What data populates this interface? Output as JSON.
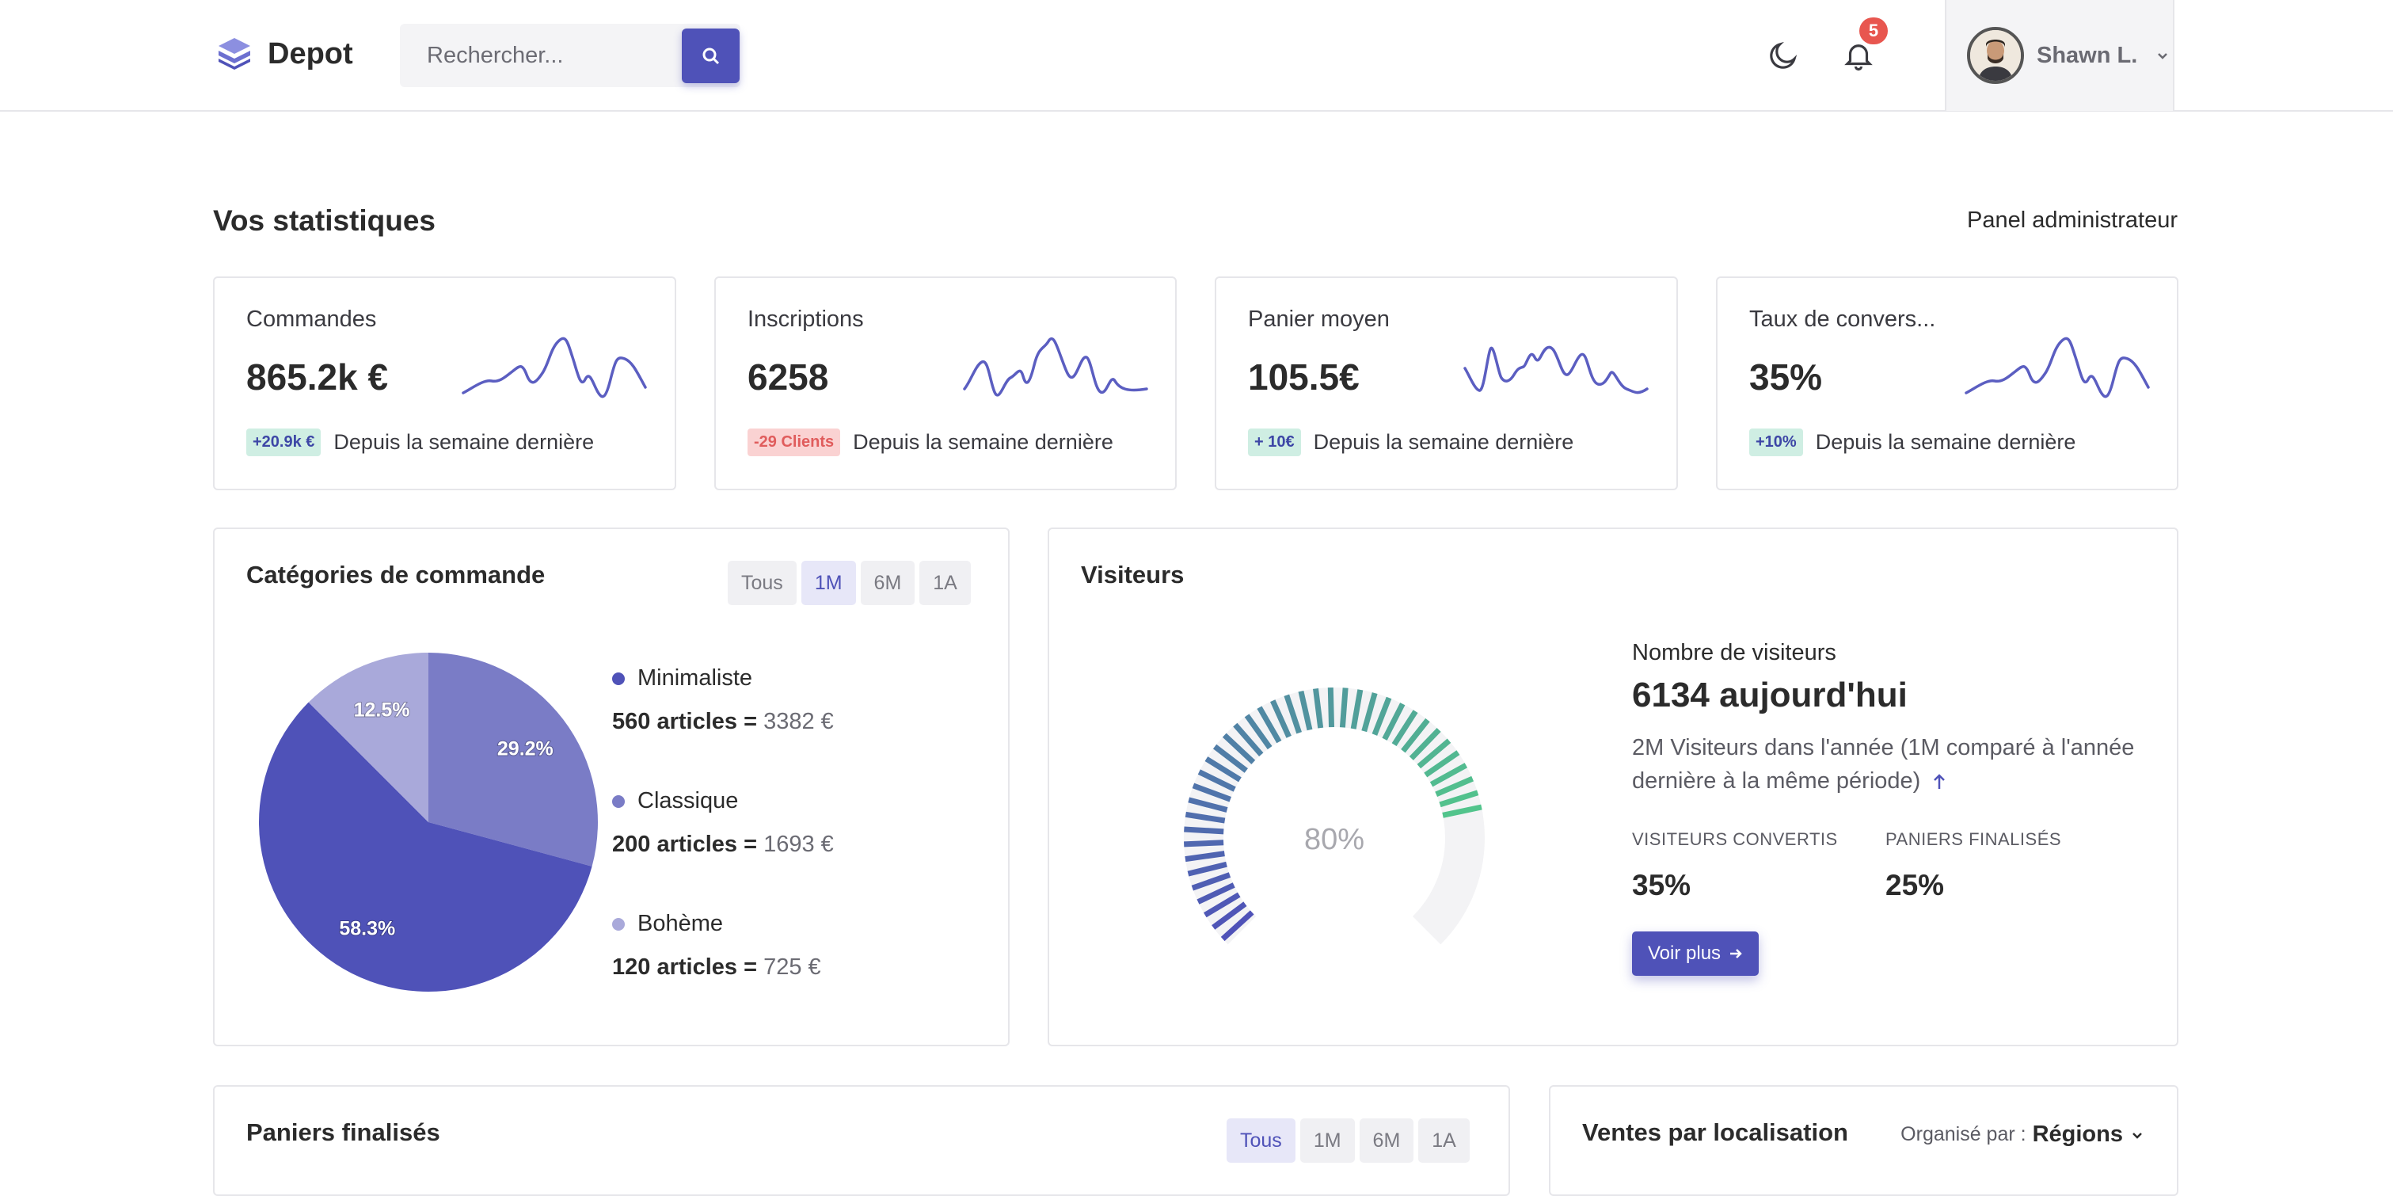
{
  "brand": {
    "name": "Depot",
    "accent": "#4f52b8"
  },
  "search": {
    "placeholder": "Rechercher..."
  },
  "notifications": {
    "count": "5"
  },
  "user": {
    "name": "Shawn L."
  },
  "page": {
    "title": "Vos statistiques",
    "admin_link": "Panel administrateur"
  },
  "stats": [
    {
      "label": "Commandes",
      "value": "865.2k €",
      "delta": "+20.9k €",
      "delta_kind": "green",
      "period": "Depuis la semaine dernière"
    },
    {
      "label": "Inscriptions",
      "value": "6258",
      "delta": "-29 Clients",
      "delta_kind": "red",
      "period": "Depuis la semaine dernière"
    },
    {
      "label": "Panier moyen",
      "value": "105.5€",
      "delta": "+ 10€",
      "delta_kind": "green",
      "period": "Depuis la semaine dernière"
    },
    {
      "label": "Taux de convers...",
      "value": "35%",
      "delta": "+10%",
      "delta_kind": "green",
      "period": "Depuis la semaine dernière"
    }
  ],
  "categories": {
    "title": "Catégories de commande",
    "filters": [
      "Tous",
      "1M",
      "6M",
      "1A"
    ],
    "active_filter": "1M",
    "items": [
      {
        "name": "Minimaliste",
        "count": "560 articles =",
        "amount": "3382 €",
        "color": "#4f52b8"
      },
      {
        "name": "Classique",
        "count": "200 articles =",
        "amount": "1693 €",
        "color": "#7a7cc6"
      },
      {
        "name": "Bohème",
        "count": "120 articles =",
        "amount": "725 €",
        "color": "#a9a9da"
      }
    ]
  },
  "chart_data": {
    "type": "pie",
    "categories": [
      "Minimaliste",
      "Classique",
      "Bohème"
    ],
    "values": [
      58.3,
      29.2,
      12.5
    ],
    "labels": [
      "58.3%",
      "29.2%",
      "12.5%"
    ]
  },
  "visitors": {
    "title": "Visiteurs",
    "gauge_value": 80,
    "gauge_label": "80%",
    "label": "Nombre de visiteurs",
    "today": "6134 aujourd'hui",
    "desc": "2M Visiteurs dans l'année (1M comparé à l'année dernière à la même période)",
    "stat1_label": "VISITEURS CONVERTIS",
    "stat1_value": "35%",
    "stat2_label": "PANIERS FINALISÉS",
    "stat2_value": "25%",
    "button": "Voir plus"
  },
  "baskets": {
    "title": "Paniers finalisés",
    "filters": [
      "Tous",
      "1M",
      "6M",
      "1A"
    ],
    "active_filter": "Tous"
  },
  "sales_location": {
    "title": "Ventes par localisation",
    "org_label": "Organisé par :",
    "org_value": "Régions"
  }
}
